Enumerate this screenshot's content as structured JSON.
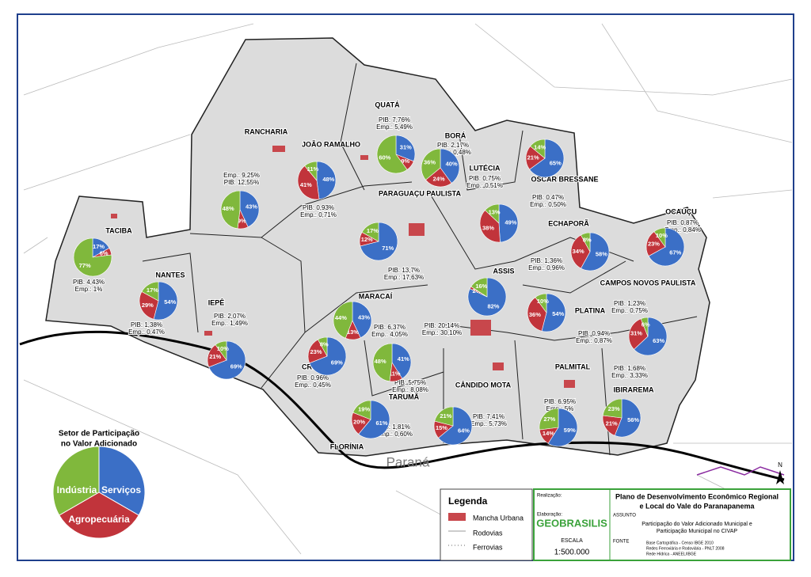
{
  "municipalities": [
    {
      "name": "TACIBA",
      "pib": "PIB: 4,43%",
      "emp": "Emp.: 1%",
      "values": [
        17,
        6,
        77
      ],
      "value_labels": [
        "17%",
        "6%",
        "77%"
      ]
    },
    {
      "name": "NANTES",
      "pib": "PIB: 1,38%",
      "emp": "Emp.: 0,47%",
      "values": [
        54,
        29,
        17
      ],
      "value_labels": [
        "54%",
        "29%",
        "17%"
      ]
    },
    {
      "name": "IEPÊ",
      "pib": "PIB: 2,07%",
      "emp": "Emp.: 1,49%",
      "values": [
        69,
        21,
        10
      ],
      "value_labels": [
        "69%",
        "21%",
        "10%"
      ]
    },
    {
      "name": "RANCHARIA",
      "pib": "PIB: 12,55%",
      "emp": "Emp.: 9,25%",
      "values": [
        43,
        9,
        48
      ],
      "value_labels": [
        "43%",
        "9%",
        "48%"
      ]
    },
    {
      "name": "JOÃO RAMALHO",
      "pib": "PIB: 0,93%",
      "emp": "Emp.: 0,71%",
      "values": [
        48,
        41,
        11
      ],
      "value_labels": [
        "48%",
        "41%",
        "11%"
      ]
    },
    {
      "name": "QUATÁ",
      "pib": "PIB: 7,76%",
      "emp": "Emp.: 5,49%",
      "values": [
        31,
        9,
        60
      ],
      "value_labels": [
        "31%",
        "9%",
        "60%"
      ]
    },
    {
      "name": "BORÁ",
      "pib": "PIB: 2,17%",
      "emp": "Emp.: 0,48%",
      "values": [
        40,
        24,
        36
      ],
      "value_labels": [
        "40%",
        "24%",
        "36%"
      ]
    },
    {
      "name": "PARAGUAÇU PAULISTA",
      "pib": "PIB: 13,7%",
      "emp": "Emp.: 17,63%",
      "values": [
        71,
        12,
        17
      ],
      "value_labels": [
        "71%",
        "12%",
        "17%"
      ]
    },
    {
      "name": "LUTÉCIA",
      "pib": "PIB: 0,75%",
      "emp": "Emp.: 0,51%",
      "values": [
        49,
        38,
        13
      ],
      "value_labels": [
        "49%",
        "38%",
        "13%"
      ]
    },
    {
      "name": "OSCAR BRESSANE",
      "pib": "PIB: 0,47%",
      "emp": "Emp.: 0,50%",
      "values": [
        65,
        21,
        14
      ],
      "value_labels": [
        "65%",
        "21%",
        "14%"
      ]
    },
    {
      "name": "ECHAPORÃ",
      "pib": "PIB: 1,36%",
      "emp": "Emp.: 0,96%",
      "values": [
        58,
        34,
        8
      ],
      "value_labels": [
        "58%",
        "34%",
        "8%"
      ]
    },
    {
      "name": "OCAUÇU",
      "pib": "PIB: 0,87%",
      "emp": "Emp.: 0,84%",
      "values": [
        67,
        23,
        10
      ],
      "value_labels": [
        "67%",
        "23%",
        "10%"
      ]
    },
    {
      "name": "MARACAÍ",
      "pib": "PIB: 6,37%",
      "emp": "Emp.: 4,05%",
      "values": [
        43,
        13,
        44
      ],
      "value_labels": [
        "43%",
        "13%",
        "44%"
      ]
    },
    {
      "name": "ASSIS",
      "pib": "PIB: 20,14%",
      "emp": "Emp.: 30,10%",
      "values": [
        82,
        2,
        16
      ],
      "value_labels": [
        "82%",
        "2%",
        "16%"
      ]
    },
    {
      "name": "PLATINA",
      "pib": "PIB: 0,94%",
      "emp": "Emp.: 0,87%",
      "values": [
        54,
        36,
        10
      ],
      "value_labels": [
        "54%",
        "36%",
        "10%"
      ]
    },
    {
      "name": "CAMPOS NOVOS PAULISTA",
      "pib": "PIB: 1,23%",
      "emp": "Emp.: 0,75%",
      "values": [
        63,
        31,
        6
      ],
      "value_labels": [
        "63%",
        "31%",
        "6%"
      ]
    },
    {
      "name": "CRUZÁLIA",
      "pib": "PIB: 0,96%",
      "emp": "Emp.: 0,45%",
      "values": [
        69,
        23,
        8
      ],
      "value_labels": [
        "69%",
        "23%",
        "8%"
      ]
    },
    {
      "name": "TARUMÃ",
      "pib": "PIB: 5,75%",
      "emp": "Emp.: 8,08%",
      "values": [
        41,
        11,
        48
      ],
      "value_labels": [
        "41%",
        "11%",
        "48%"
      ]
    },
    {
      "name": "CÂNDIDO MOTA",
      "pib": "PIB: 7,41%",
      "emp": "Emp.: 5,73%",
      "values": [
        64,
        15,
        21
      ],
      "value_labels": [
        "64%",
        "15%",
        "21%"
      ]
    },
    {
      "name": "PALMITAL",
      "pib": "PIB: 6,95%",
      "emp": "Emp.: 5%",
      "values": [
        59,
        14,
        27
      ],
      "value_labels": [
        "59%",
        "14%",
        "27%"
      ]
    },
    {
      "name": "IBIRAREMA",
      "pib": "PIB: 1,68%",
      "emp": "Emp.: 3,33%",
      "values": [
        56,
        21,
        23
      ],
      "value_labels": [
        "56%",
        "21%",
        "23%"
      ]
    },
    {
      "name": "FLORÍNIA",
      "pib": "PIB: 1,81%",
      "emp": "Emp.: 0,60%",
      "values": [
        61,
        20,
        19
      ],
      "value_labels": [
        "61%",
        "20%",
        "19%"
      ]
    }
  ],
  "sector_colors": [
    "#3b6fc6",
    "#c1343b",
    "#80b83c"
  ],
  "sector_legend": {
    "title_1": "Setor de Participação",
    "title_2": "no Valor Adicionado",
    "services": "Serviços",
    "industry": "Indústria",
    "agro": "Agropecuária"
  },
  "river": "Paraná",
  "legend": {
    "title": "Legenda",
    "urban": "Mancha Urbana",
    "roads": "Rodovias",
    "rail": "Ferrovias",
    "scale_label": "ESCALA",
    "scale": "1:500.000"
  },
  "title_block": {
    "realizacao": "Realização:",
    "elaboracao": "Elaboração:",
    "logo": "GEOBRASILIS",
    "title_1": "Plano de Desenvolvimento Econômico Regional",
    "title_2": "e Local do Vale do Paranapanema",
    "assunto": "ASSUNTO",
    "subject_1": "Participação do Valor Adicionado Municipal e",
    "subject_2": "Participação Municipal no CIVAP",
    "fonte": "FONTE",
    "source_1": "Base Cartográfica - Censo IBGE 2010",
    "source_2": "Redes Ferroviária e Rodoviária - PNLT 2008",
    "source_3": "Rede Hídrica - ANEEL/IBGE",
    "north": "N"
  }
}
